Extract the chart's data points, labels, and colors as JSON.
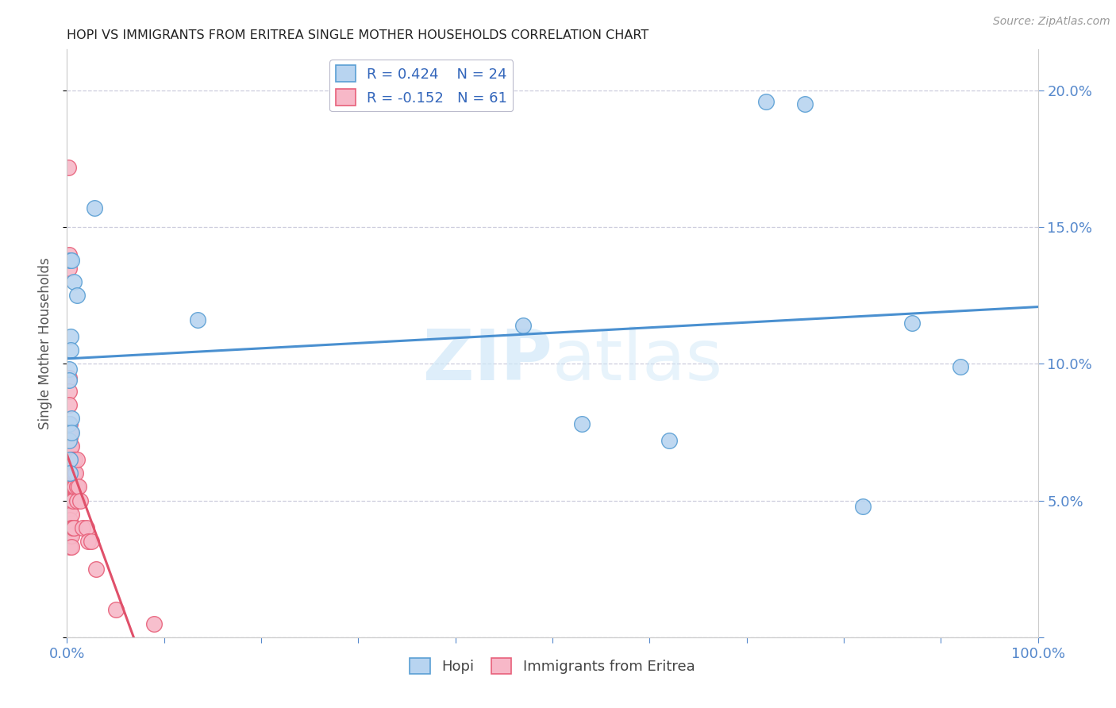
{
  "title": "HOPI VS IMMIGRANTS FROM ERITREA SINGLE MOTHER HOUSEHOLDS CORRELATION CHART",
  "source": "Source: ZipAtlas.com",
  "xlabel_hopi": "Hopi",
  "xlabel_eritrea": "Immigrants from Eritrea",
  "ylabel": "Single Mother Households",
  "hopi_r": 0.424,
  "hopi_n": 24,
  "eritrea_r": -0.152,
  "eritrea_n": 61,
  "hopi_color": "#b8d4f0",
  "eritrea_color": "#f7b8c8",
  "hopi_edge_color": "#5a9fd4",
  "eritrea_edge_color": "#e8607a",
  "hopi_line_color": "#4a90d0",
  "eritrea_line_color": "#e0506a",
  "eritrea_line_dashed_color": "#e0a0b0",
  "watermark_color": "#d0e8f8",
  "hopi_x": [
    0.003,
    0.005,
    0.007,
    0.01,
    0.002,
    0.002,
    0.002,
    0.002,
    0.003,
    0.003,
    0.004,
    0.004,
    0.005,
    0.005,
    0.028,
    0.135,
    0.47,
    0.72,
    0.62,
    0.92,
    0.53,
    0.87,
    0.76,
    0.82
  ],
  "hopi_y": [
    0.138,
    0.138,
    0.13,
    0.125,
    0.098,
    0.094,
    0.078,
    0.072,
    0.065,
    0.06,
    0.11,
    0.105,
    0.08,
    0.075,
    0.157,
    0.116,
    0.114,
    0.196,
    0.072,
    0.099,
    0.078,
    0.115,
    0.195,
    0.048
  ],
  "eritrea_x": [
    0.001,
    0.002,
    0.002,
    0.002,
    0.002,
    0.002,
    0.002,
    0.002,
    0.003,
    0.003,
    0.003,
    0.003,
    0.003,
    0.003,
    0.003,
    0.003,
    0.003,
    0.003,
    0.003,
    0.003,
    0.003,
    0.004,
    0.004,
    0.004,
    0.004,
    0.004,
    0.004,
    0.004,
    0.005,
    0.005,
    0.005,
    0.005,
    0.005,
    0.005,
    0.005,
    0.005,
    0.005,
    0.006,
    0.006,
    0.006,
    0.006,
    0.006,
    0.007,
    0.007,
    0.007,
    0.007,
    0.008,
    0.008,
    0.009,
    0.01,
    0.01,
    0.01,
    0.012,
    0.014,
    0.016,
    0.02,
    0.022,
    0.025,
    0.03,
    0.05,
    0.09
  ],
  "eritrea_y": [
    0.172,
    0.14,
    0.135,
    0.095,
    0.09,
    0.085,
    0.078,
    0.068,
    0.078,
    0.073,
    0.068,
    0.063,
    0.06,
    0.057,
    0.053,
    0.05,
    0.047,
    0.043,
    0.04,
    0.037,
    0.033,
    0.075,
    0.07,
    0.065,
    0.06,
    0.055,
    0.05,
    0.04,
    0.07,
    0.065,
    0.06,
    0.055,
    0.05,
    0.045,
    0.04,
    0.037,
    0.033,
    0.065,
    0.06,
    0.055,
    0.05,
    0.04,
    0.065,
    0.06,
    0.055,
    0.04,
    0.065,
    0.055,
    0.06,
    0.065,
    0.055,
    0.05,
    0.055,
    0.05,
    0.04,
    0.04,
    0.035,
    0.035,
    0.025,
    0.01,
    0.005
  ],
  "xlim": [
    0.0,
    1.0
  ],
  "ylim": [
    0.0,
    0.215
  ],
  "xticks": [
    0.0,
    0.1,
    0.2,
    0.3,
    0.4,
    0.5,
    0.6,
    0.7,
    0.8,
    0.9,
    1.0
  ],
  "yticks": [
    0.0,
    0.05,
    0.1,
    0.15,
    0.2
  ],
  "ytick_labels": [
    "",
    "5.0%",
    "10.0%",
    "15.0%",
    "20.0%"
  ],
  "xtick_labels": [
    "0.0%",
    "",
    "",
    "",
    "",
    "",
    "",
    "",
    "",
    "",
    "100.0%"
  ],
  "background_color": "#ffffff",
  "grid_color": "#ccccdd",
  "tick_color": "#5588cc",
  "axis_color": "#cccccc",
  "title_color": "#222222",
  "source_color": "#999999",
  "ylabel_color": "#555555"
}
